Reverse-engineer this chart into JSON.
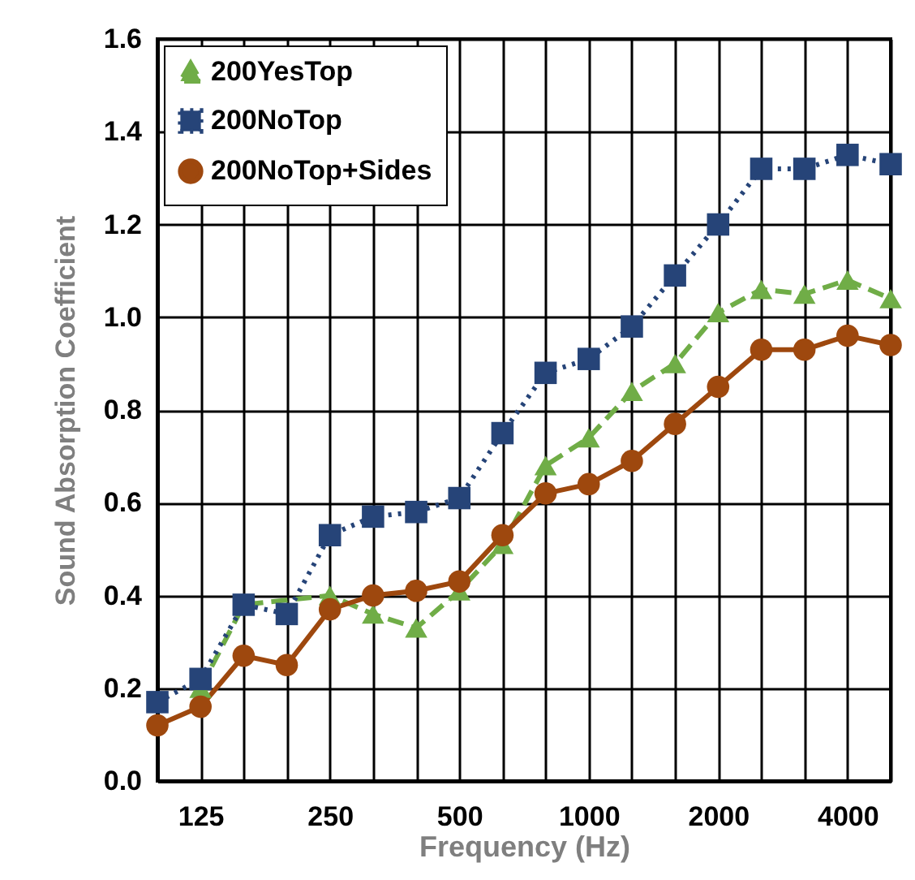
{
  "chart_data": {
    "type": "line",
    "xlabel": "Frequency (Hz)",
    "ylabel": "Sound Absorption Coefficient",
    "categories": [
      null,
      "125",
      null,
      null,
      "250",
      null,
      null,
      "500",
      null,
      null,
      "1000",
      null,
      null,
      "2000",
      null,
      null,
      "4000",
      null
    ],
    "ylim": [
      0,
      1.6
    ],
    "yticks": [
      {
        "value": 0,
        "label": "0.0"
      },
      0.2,
      0.4,
      0.6,
      0.8,
      {
        "value": 1,
        "label": "1.0"
      },
      1.2,
      1.4,
      1.6
    ],
    "grid": true,
    "legend": "top left",
    "series": [
      {
        "name": "200YesTop",
        "color": "#70ad47",
        "marker": "triangle",
        "line_style": "dashed",
        "values": [
          null,
          0.2,
          0.38,
          null,
          0.4,
          0.36,
          0.33,
          0.41,
          0.51,
          0.68,
          0.74,
          0.84,
          0.9,
          1.01,
          1.06,
          1.05,
          1.08,
          1.04
        ]
      },
      {
        "name": "200NoTop",
        "color": "#264478",
        "marker": "square",
        "line_style": "dotted",
        "values": [
          0.17,
          0.22,
          0.38,
          0.36,
          0.53,
          0.57,
          0.58,
          0.61,
          0.75,
          0.88,
          0.91,
          0.98,
          1.09,
          1.2,
          1.32,
          1.32,
          1.35,
          1.33
        ]
      },
      {
        "name": "200NoTop+Sides",
        "color": "#9e480e",
        "marker": "circle",
        "line_style": "solid",
        "values": [
          0.12,
          0.16,
          0.27,
          0.25,
          0.37,
          0.4,
          0.41,
          0.43,
          0.53,
          0.62,
          0.64,
          0.69,
          0.77,
          0.85,
          0.93,
          0.93,
          0.96,
          0.94
        ]
      }
    ]
  }
}
